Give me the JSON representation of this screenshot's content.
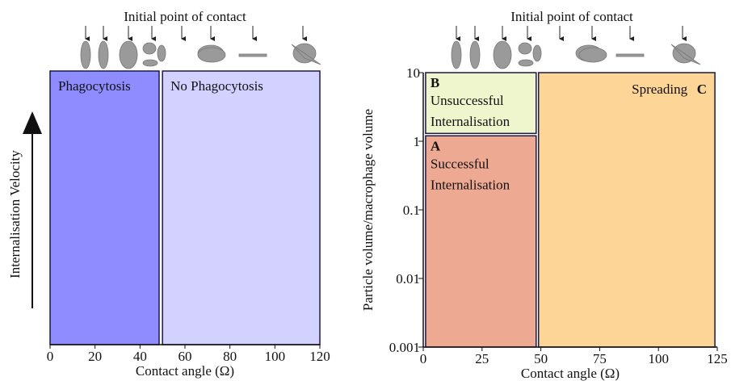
{
  "chart_data": [
    {
      "type": "region",
      "title": "Initial point of contact",
      "xlabel": "Contact angle (Ω)",
      "ylabel": "Internalisation Velocity",
      "xlim": [
        0,
        120
      ],
      "xticks": [
        0,
        20,
        40,
        60,
        80,
        100,
        120
      ],
      "regions": [
        {
          "text": [
            "Phagocytosis"
          ],
          "x": [
            0,
            48.5
          ],
          "color": "#8f8cff"
        },
        {
          "text": [
            "No Phagocytosis"
          ],
          "x": [
            50,
            120
          ],
          "color": "#d2d1ff"
        }
      ]
    },
    {
      "type": "region",
      "title": "Initial point of contact",
      "xlabel": "Contact angle (Ω)",
      "ylabel": "Particle volume/macrophage volume",
      "xlim": [
        0,
        125
      ],
      "xticks": [
        0,
        25,
        50,
        75,
        100,
        125
      ],
      "log_y": true,
      "ylim": [
        0.001,
        10
      ],
      "yticks": [
        10,
        1,
        0.1,
        0.01,
        0.001
      ],
      "regions": [
        {
          "letter": "B",
          "text": [
            "Unsuccessful",
            "Internalisation"
          ],
          "x": [
            1,
            48
          ],
          "y": [
            1.3,
            10
          ],
          "color": "#eff5cd"
        },
        {
          "letter": "A",
          "text": [
            "Successful",
            "Internalisation"
          ],
          "x": [
            1,
            48
          ],
          "y": [
            0.001,
            1.2
          ],
          "color": "#eea993"
        },
        {
          "letter": "C",
          "text": [
            "Spreading"
          ],
          "x": [
            49,
            124
          ],
          "y": [
            0.001,
            10
          ],
          "color": "#fdd597"
        }
      ]
    }
  ]
}
